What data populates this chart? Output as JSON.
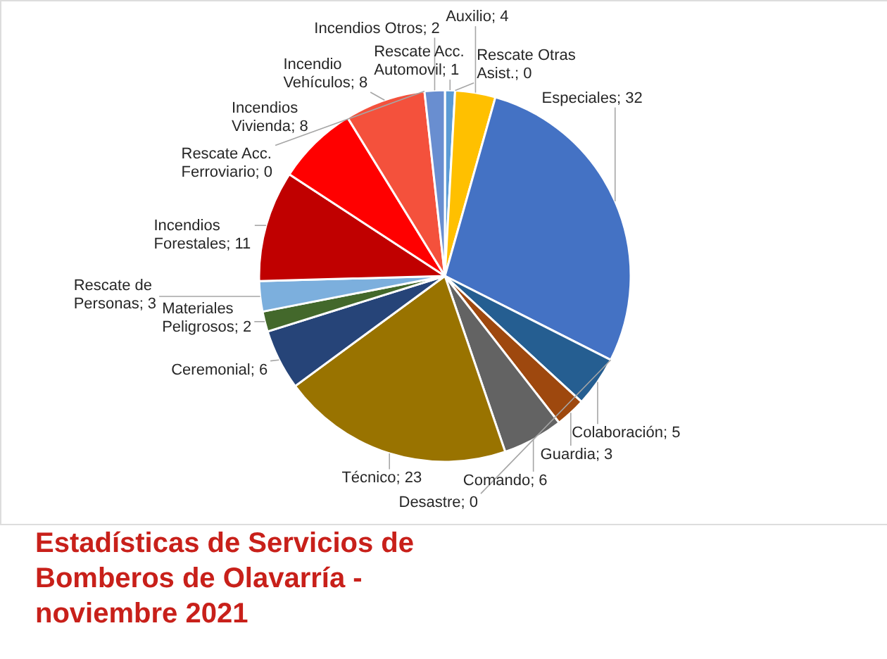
{
  "chart_data": {
    "type": "pie",
    "title": "Estadísticas de Servicios de Bomberos de Olavarría - noviembre 2021",
    "categories": [
      "Rescate Acc. Automovil",
      "Rescate Otras Asist.",
      "Auxilio",
      "Especiales",
      "Desastre",
      "Colaboración",
      "Guardia",
      "Comando",
      "Técnico",
      "Ceremonial",
      "Materiales Peligrosos",
      "Rescate de Personas",
      "Incendios Forestales",
      "Incendios Vivienda",
      "Incendio Vehículos",
      "Rescate Acc. Ferroviario",
      "Incendios Otros"
    ],
    "values": [
      1,
      0,
      4,
      32,
      0,
      5,
      3,
      6,
      23,
      6,
      2,
      3,
      11,
      8,
      8,
      0,
      2
    ],
    "value_labels": [
      "; 1",
      "; 0",
      "; 4",
      "; 32",
      "; 0",
      "; 5",
      "; 3",
      "; 6",
      "; 23",
      "; 6",
      "; 2",
      "; 3",
      "; 11",
      "; 8",
      "; 8",
      "; 0",
      "; 2"
    ],
    "colors": [
      "#5b9bd5",
      "#70ad47",
      "#ffc000",
      "#4472c4",
      "#ed7d31",
      "#255e91",
      "#9e480e",
      "#636363",
      "#997300",
      "#264478",
      "#43682b",
      "#7cafdd",
      "#c00000",
      "#ff0000",
      "#f4513c",
      "#a5a5a5",
      "#698ed0"
    ]
  }
}
